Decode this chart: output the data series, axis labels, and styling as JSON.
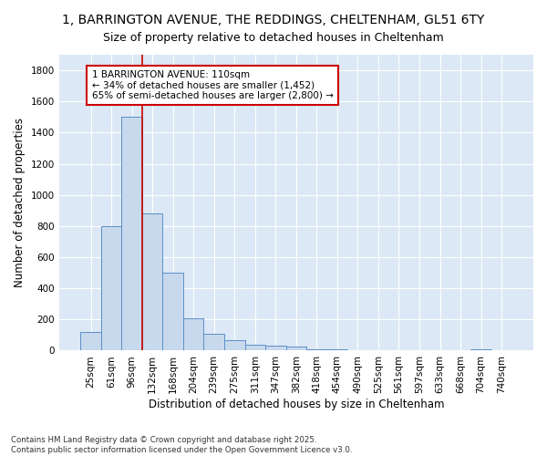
{
  "title_line1": "1, BARRINGTON AVENUE, THE REDDINGS, CHELTENHAM, GL51 6TY",
  "title_line2": "Size of property relative to detached houses in Cheltenham",
  "xlabel": "Distribution of detached houses by size in Cheltenham",
  "ylabel": "Number of detached properties",
  "bar_color": "#c8d9ed",
  "bar_edge_color": "#5b8fc9",
  "categories": [
    "25sqm",
    "61sqm",
    "96sqm",
    "132sqm",
    "168sqm",
    "204sqm",
    "239sqm",
    "275sqm",
    "311sqm",
    "347sqm",
    "382sqm",
    "418sqm",
    "454sqm",
    "490sqm",
    "525sqm",
    "561sqm",
    "597sqm",
    "633sqm",
    "668sqm",
    "704sqm",
    "740sqm"
  ],
  "values": [
    120,
    800,
    1500,
    880,
    500,
    210,
    110,
    65,
    40,
    30,
    25,
    10,
    8,
    5,
    3,
    2,
    1,
    1,
    1,
    10,
    1
  ],
  "ylim": [
    0,
    1900
  ],
  "yticks": [
    0,
    200,
    400,
    600,
    800,
    1000,
    1200,
    1400,
    1600,
    1800
  ],
  "vline_x": 2.5,
  "vline_color": "#cc0000",
  "annotation_text": "1 BARRINGTON AVENUE: 110sqm\n← 34% of detached houses are smaller (1,452)\n65% of semi-detached houses are larger (2,800) →",
  "annotation_box_color": "#ffffff",
  "annotation_box_edge": "#cc0000",
  "footnote": "Contains HM Land Registry data © Crown copyright and database right 2025.\nContains public sector information licensed under the Open Government Licence v3.0.",
  "background_color": "#dce8f5",
  "grid_color": "#ffffff",
  "fig_bg": "#ffffff",
  "title1_fontsize": 10,
  "title2_fontsize": 9,
  "axis_label_fontsize": 8.5,
  "tick_fontsize": 7.5,
  "annot_fontsize": 7.5
}
